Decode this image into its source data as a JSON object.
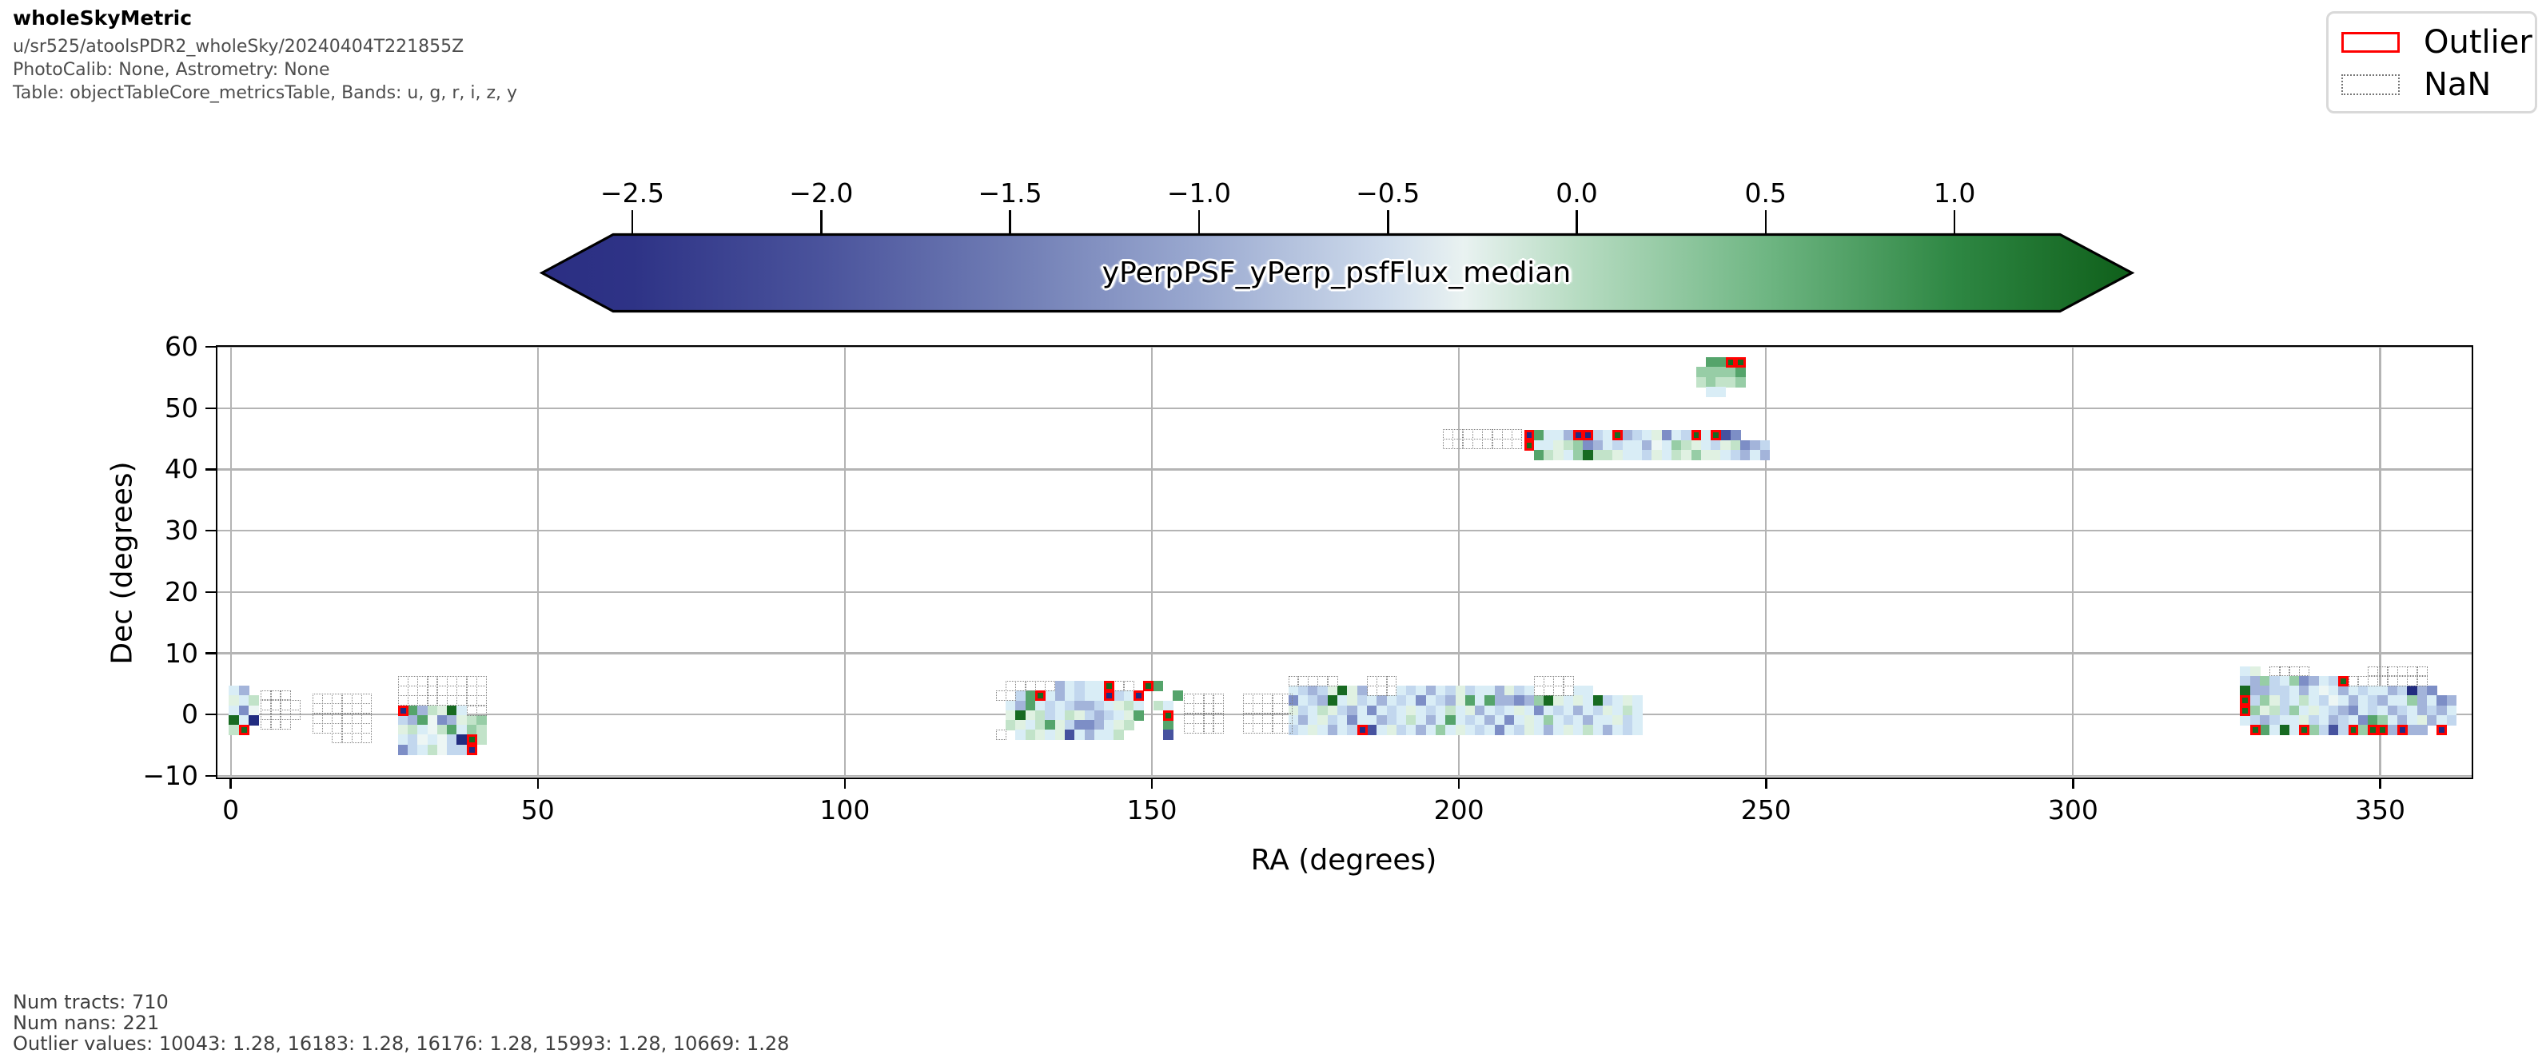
{
  "header": {
    "title": "wholeSkyMetric",
    "lines": [
      "u/sr525/atoolsPDR2_wholeSky/20240404T221855Z",
      "PhotoCalib: None, Astrometry: None",
      "Table: objectTableCore_metricsTable, Bands: u, g, r, i, z, y"
    ]
  },
  "legend": {
    "items": [
      {
        "label": "Outlier",
        "swatch": "red-solid-rect",
        "color": "#ff0000"
      },
      {
        "label": "NaN",
        "swatch": "gray-dotted-rect",
        "color": "#808080"
      }
    ]
  },
  "stats": {
    "num_tracts_label": "Num tracts: 710",
    "num_nans_label": "Num nans: 221",
    "outlier_values_label": "Outlier values: 10043: 1.28, 16183: 1.28, 16176: 1.28, 15993: 1.28, 10669: 1.28",
    "num_tracts": 710,
    "num_nans": 221,
    "outliers": [
      {
        "tract": 10043,
        "value": 1.28
      },
      {
        "tract": 16183,
        "value": 1.28
      },
      {
        "tract": 16176,
        "value": 1.28
      },
      {
        "tract": 15993,
        "value": 1.28
      },
      {
        "tract": 10669,
        "value": 1.28
      }
    ]
  },
  "chart_data": {
    "type": "heatmap",
    "title": "wholeSkyMetric",
    "xlabel": "RA (degrees)",
    "ylabel": "Dec (degrees)",
    "x_ticks": [
      0,
      50,
      100,
      150,
      200,
      250,
      300,
      350
    ],
    "x_tick_labels": [
      "0",
      "50",
      "100",
      "150",
      "200",
      "250",
      "300",
      "350"
    ],
    "y_ticks": [
      -10,
      0,
      10,
      20,
      30,
      40,
      50,
      60
    ],
    "y_tick_labels": [
      "−10",
      "0",
      "10",
      "20",
      "30",
      "40",
      "50",
      "60"
    ],
    "xlim": [
      -2.3,
      364.9
    ],
    "ylim": [
      -10.15,
      60.15
    ],
    "grid": true,
    "colorbar": {
      "label": "yPerpPSF_yPerp_psfFlux_median",
      "ticks": [
        -2.5,
        -2.0,
        -1.5,
        -1.0,
        -0.5,
        0.0,
        0.5,
        1.0
      ],
      "tick_labels": [
        "−2.5",
        "−2.0",
        "−1.5",
        "−1.0",
        "−0.5",
        "0.0",
        "0.5",
        "1.0"
      ],
      "domain": [
        -2.74,
        1.47
      ],
      "shape": "double-arrow",
      "gradient": [
        {
          "v": -2.74,
          "c": "#2b2e83"
        },
        {
          "v": -2.5,
          "c": "#2e3386"
        },
        {
          "v": -2.0,
          "c": "#4a539c"
        },
        {
          "v": -1.5,
          "c": "#6f7cb4"
        },
        {
          "v": -1.0,
          "c": "#9aa9d0"
        },
        {
          "v": -0.5,
          "c": "#cfdcec"
        },
        {
          "v": -0.3,
          "c": "#e9f2f1"
        },
        {
          "v": 0.0,
          "c": "#b7dcc2"
        },
        {
          "v": 0.5,
          "c": "#6fb683"
        },
        {
          "v": 1.0,
          "c": "#2e8743"
        },
        {
          "v": 1.47,
          "c": "#0f5f1a"
        }
      ]
    },
    "cell_size_deg": 1.6,
    "palette": {
      "a": "#edf6f4",
      "b": "#d9edf6",
      "c": "#c2d7ee",
      "d": "#a3b4da",
      "e": "#7d8ec6",
      "f": "#46529f",
      "g": "#222c80",
      "h": "#e0f1e2",
      "i": "#c2e3c9",
      "j": "#97cda6",
      "k": "#55a46b",
      "l": "#176a21"
    },
    "encoding_note": "rows are strings read left-to-right from dec0 downward; '.'=NaN tract, space=no tract, letters=palette color, uppercase=outlier (red box)",
    "clusters": [
      {
        "name": "left-small",
        "ra0": -0.3,
        "dec0": 4.7,
        "rows": [
          "bd",
          "hbi",
          "bea",
          "lbg",
          "iL"
        ]
      },
      {
        "name": "left-nan-patch-1",
        "ra0": 4.9,
        "dec0": 4.0,
        "rows": [
          "...",
          "....",
          "....",
          "..."
        ]
      },
      {
        "name": "left-nan-patch-2",
        "ra0": 13.3,
        "dec0": 3.4,
        "rows": [
          "......",
          "......",
          "......",
          "......",
          "  ...."
        ]
      },
      {
        "name": "left-big",
        "ra0": 27.2,
        "dec0": 6.3,
        "rows": [
          ".........",
          ".........",
          ".........",
          "Gkdihlb..",
          "cdkaedhij",
          "hibaikbji",
          "bcabacgLi",
          "ecbiaccG"
        ]
      },
      {
        "name": "mid-left",
        "ra0": 124.6,
        "dec0": 5.5,
        "rows": [
          " .....dbcbbL.. Lk",
          "..ckLbdbcbbGcbG   k",
          " bdkbcbcddcbhib ib",
          " hlhicbihcdcbhk  L",
          " ihbikhceedbhi   k",
          ". bihbhfbdbbi    f"
        ]
      },
      {
        "name": "mid-nan-patch-1",
        "ra0": 155.2,
        "dec0": 3.4,
        "rows": [
          "....",
          "....",
          "....",
          "...."
        ]
      },
      {
        "name": "mid-nan-patch-2",
        "ra0": 164.8,
        "dec0": 3.4,
        "rows": [
          ".....",
          ".....",
          ".....",
          "....."
        ]
      },
      {
        "name": "mid-right",
        "ra0": 172.2,
        "dec0": 6.3,
        "rows": [
          ".....   ...              ....       ",
          "bcdchlhd...bcbdbchcbbdhcb....bb     ",
          "ebcdlbhcbdbcbebcdhkbkddedjlhbhblcbhb",
          "hcbihcdbebcbhbcbibhdbcbhbebcbdbchbib",
          "bdbhcbebbdcbibdbkbcbdbebhbjbcbdbbhcb",
          "cbhbdbcGfbhcbdbjbhbcbebchbdbhbibdbcb"
        ]
      },
      {
        "name": "upper-nan-patch",
        "ra0": 197.4,
        "dec0": 46.6,
        "rows": [
          "........",
          "........"
        ]
      },
      {
        "name": "upper-band",
        "ra0": 210.6,
        "dec0": 46.4,
        "rows": [
          "GkbbdGGcbLdcbhebcLbLfe",
          "Lbbhijedbcbbdabjihbchiedc",
          " kihbjliihbbchbihjhhbcdbd"
        ]
      },
      {
        "name": "top-small",
        "ra0": 238.6,
        "dec0": 58.3,
        "rows": [
          " kkLL",
          "jjjjk",
          "ijiij",
          " bb"
        ]
      },
      {
        "name": "right-band",
        "ra0": 327.2,
        "dec0": 7.9,
        "rows": [
          "bh ....      ......   ",
          "cdjcbjedbcL........   ",
          "lddccbdbabdbcbbdcgde  ",
          "Lcjhcbibcabdbcdbbjdbed",
          "Ljhicjbhbcdebcbdcbdcdb",
          "bcdcbbhcbdcbekjbdbhdbc",
          " LkblbLjcfcLjLLdGdd G "
        ]
      }
    ]
  }
}
